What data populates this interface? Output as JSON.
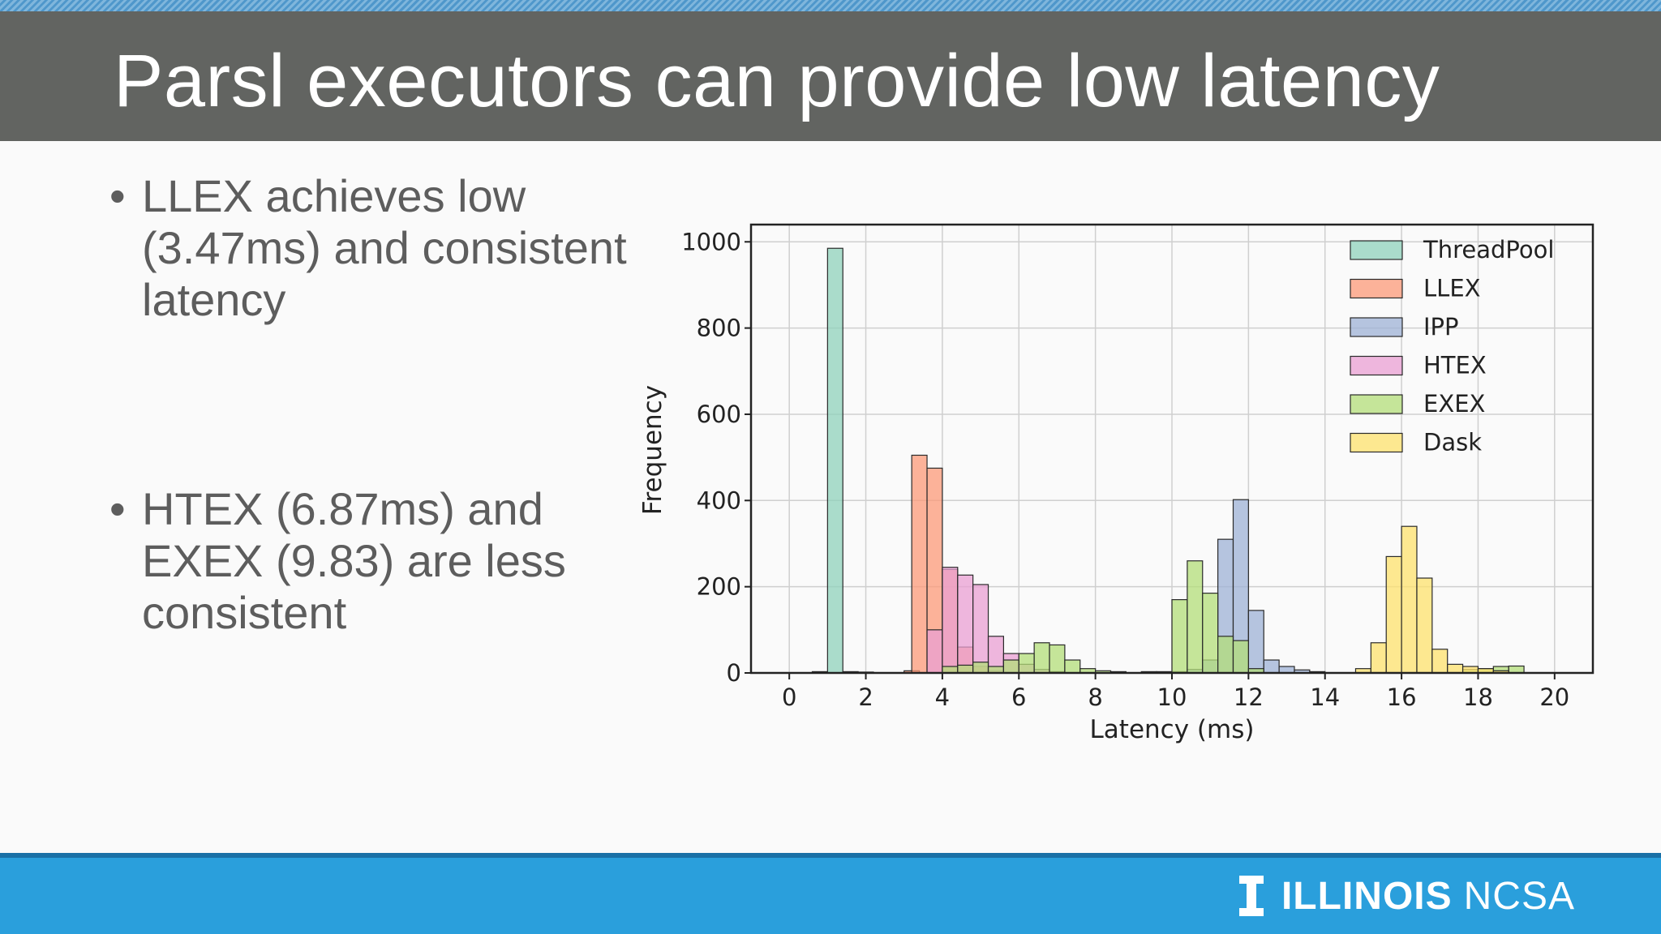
{
  "slide": {
    "title": "Parsl executors can provide low latency",
    "bullets": [
      "LLEX achieves low (3.47ms) and consistent latency",
      "HTEX (6.87ms) and EXEX (9.83) are less consistent"
    ]
  },
  "footer": {
    "logo_word": "ILLINOIS",
    "logo_sub": "NCSA",
    "icon": "block-i-icon",
    "color": "#2a9fdc"
  },
  "chart_data": {
    "type": "bar",
    "subtype": "overlaid-histogram",
    "xlabel": "Latency (ms)",
    "ylabel": "Frequency",
    "xlim": [
      -1,
      21
    ],
    "ylim": [
      0,
      1040
    ],
    "xticks": [
      0,
      2,
      4,
      6,
      8,
      10,
      12,
      14,
      16,
      18,
      20
    ],
    "yticks": [
      0,
      200,
      400,
      600,
      800,
      1000
    ],
    "grid": true,
    "legend_position": "top-right",
    "bin_width": 0.4,
    "series": [
      {
        "name": "ThreadPool",
        "color": "#8fd1bb",
        "bins": [
          {
            "x": 0.6,
            "y": 3
          },
          {
            "x": 1.0,
            "y": 985
          },
          {
            "x": 1.4,
            "y": 3
          },
          {
            "x": 1.8,
            "y": 2
          }
        ]
      },
      {
        "name": "LLEX",
        "color": "#fc9978",
        "bins": [
          {
            "x": 3.0,
            "y": 5
          },
          {
            "x": 3.2,
            "y": 505
          },
          {
            "x": 3.6,
            "y": 475
          },
          {
            "x": 4.0,
            "y": 240
          },
          {
            "x": 4.4,
            "y": 60
          },
          {
            "x": 4.8,
            "y": 15
          },
          {
            "x": 5.2,
            "y": 5
          }
        ]
      },
      {
        "name": "IPP",
        "color": "#9eb1d6",
        "bins": [
          {
            "x": 10.0,
            "y": 3
          },
          {
            "x": 10.4,
            "y": 8
          },
          {
            "x": 10.8,
            "y": 30
          },
          {
            "x": 11.2,
            "y": 310
          },
          {
            "x": 11.6,
            "y": 402
          },
          {
            "x": 12.0,
            "y": 145
          },
          {
            "x": 12.4,
            "y": 30
          },
          {
            "x": 12.8,
            "y": 15
          },
          {
            "x": 13.2,
            "y": 7
          },
          {
            "x": 13.6,
            "y": 3
          }
        ]
      },
      {
        "name": "HTEX",
        "color": "#ea9fd3",
        "bins": [
          {
            "x": 3.6,
            "y": 100
          },
          {
            "x": 4.0,
            "y": 245
          },
          {
            "x": 4.4,
            "y": 227
          },
          {
            "x": 4.8,
            "y": 205
          },
          {
            "x": 5.2,
            "y": 85
          },
          {
            "x": 5.6,
            "y": 45
          },
          {
            "x": 6.0,
            "y": 20
          },
          {
            "x": 6.4,
            "y": 8
          },
          {
            "x": 6.8,
            "y": 3
          }
        ]
      },
      {
        "name": "EXEX",
        "color": "#b3dd78",
        "bins": [
          {
            "x": 4.0,
            "y": 15
          },
          {
            "x": 4.4,
            "y": 18
          },
          {
            "x": 4.8,
            "y": 25
          },
          {
            "x": 5.2,
            "y": 15
          },
          {
            "x": 5.6,
            "y": 30
          },
          {
            "x": 6.0,
            "y": 45
          },
          {
            "x": 6.4,
            "y": 70
          },
          {
            "x": 6.8,
            "y": 65
          },
          {
            "x": 7.2,
            "y": 30
          },
          {
            "x": 7.6,
            "y": 10
          },
          {
            "x": 8.0,
            "y": 5
          },
          {
            "x": 8.4,
            "y": 3
          },
          {
            "x": 9.2,
            "y": 3
          },
          {
            "x": 9.6,
            "y": 3
          },
          {
            "x": 10.0,
            "y": 170
          },
          {
            "x": 10.4,
            "y": 260
          },
          {
            "x": 10.8,
            "y": 185
          },
          {
            "x": 11.2,
            "y": 85
          },
          {
            "x": 11.6,
            "y": 75
          },
          {
            "x": 12.0,
            "y": 10
          },
          {
            "x": 17.6,
            "y": 8
          },
          {
            "x": 18.0,
            "y": 10
          },
          {
            "x": 18.4,
            "y": 15
          },
          {
            "x": 18.8,
            "y": 16
          }
        ]
      },
      {
        "name": "Dask",
        "color": "#fde16c",
        "bins": [
          {
            "x": 14.8,
            "y": 10
          },
          {
            "x": 15.2,
            "y": 70
          },
          {
            "x": 15.6,
            "y": 270
          },
          {
            "x": 16.0,
            "y": 340
          },
          {
            "x": 16.4,
            "y": 220
          },
          {
            "x": 16.8,
            "y": 55
          },
          {
            "x": 17.2,
            "y": 20
          },
          {
            "x": 17.6,
            "y": 15
          },
          {
            "x": 18.0,
            "y": 10
          },
          {
            "x": 18.4,
            "y": 5
          }
        ]
      }
    ]
  }
}
